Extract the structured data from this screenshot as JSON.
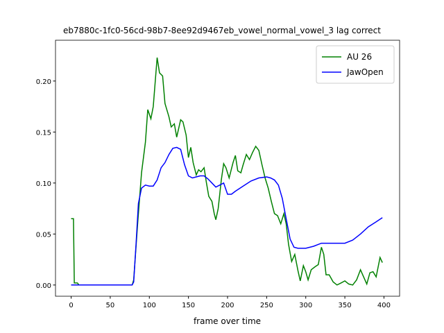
{
  "chart_data": {
    "type": "line",
    "title": "eb7880c-1fc0-56cd-98b7-8ee92d9467eb_vowel_normal_vowel_3  lag correct",
    "xlabel": "frame over time",
    "xlim": [
      -20,
      420
    ],
    "ylim": [
      -0.011,
      0.24
    ],
    "xticks": [
      0,
      50,
      100,
      150,
      200,
      250,
      300,
      350,
      400
    ],
    "yticks": [
      {
        "value": 0,
        "label": "0.00"
      },
      {
        "value": 0.05,
        "label": "0.05"
      },
      {
        "value": 0.1,
        "label": "0.10"
      },
      {
        "value": 0.15,
        "label": "0.15"
      },
      {
        "value": 0.2,
        "label": "0.20"
      }
    ],
    "legend": "upper right",
    "series": [
      {
        "name": "AU 26",
        "color": "#008000",
        "x": [
          0,
          3,
          4,
          8,
          10,
          78,
          80,
          85,
          90,
          95,
          98,
          102,
          105,
          110,
          113,
          117,
          120,
          125,
          128,
          132,
          135,
          140,
          143,
          147,
          150,
          153,
          156,
          160,
          163,
          166,
          170,
          173,
          176,
          180,
          183,
          185,
          188,
          192,
          195,
          198,
          202,
          207,
          210,
          213,
          217,
          220,
          224,
          228,
          232,
          236,
          240,
          244,
          248,
          252,
          256,
          260,
          264,
          268,
          272,
          275,
          278,
          282,
          286,
          290,
          293,
          297,
          300,
          303,
          307,
          312,
          316,
          320,
          323,
          326,
          330,
          335,
          340,
          345,
          350,
          355,
          360,
          365,
          370,
          374,
          378,
          382,
          386,
          390,
          395,
          398
        ],
        "values": [
          0.065,
          0.065,
          0.002,
          0.002,
          0,
          0,
          0.005,
          0.06,
          0.11,
          0.14,
          0.172,
          0.163,
          0.175,
          0.223,
          0.208,
          0.205,
          0.178,
          0.165,
          0.155,
          0.158,
          0.145,
          0.162,
          0.16,
          0.147,
          0.125,
          0.135,
          0.12,
          0.108,
          0.113,
          0.111,
          0.115,
          0.1,
          0.087,
          0.082,
          0.07,
          0.064,
          0.075,
          0.103,
          0.119,
          0.115,
          0.105,
          0.12,
          0.127,
          0.112,
          0.11,
          0.118,
          0.128,
          0.123,
          0.13,
          0.136,
          0.132,
          0.118,
          0.105,
          0.095,
          0.082,
          0.07,
          0.068,
          0.06,
          0.07,
          0.06,
          0.04,
          0.023,
          0.03,
          0.014,
          0.004,
          0.019,
          0.013,
          0.005,
          0.015,
          0.018,
          0.02,
          0.037,
          0.03,
          0.01,
          0.01,
          0.003,
          0,
          0.002,
          0.004,
          0.001,
          0,
          0.005,
          0.015,
          0.008,
          0.001,
          0.012,
          0.013,
          0.008,
          0.027,
          0.022
        ]
      },
      {
        "name": "JawOpen",
        "color": "#0000ff",
        "x": [
          0,
          78,
          80,
          83,
          86,
          90,
          95,
          100,
          105,
          110,
          115,
          120,
          125,
          130,
          135,
          140,
          145,
          150,
          155,
          160,
          165,
          170,
          175,
          180,
          185,
          190,
          195,
          200,
          205,
          210,
          220,
          230,
          240,
          250,
          255,
          260,
          265,
          270,
          275,
          280,
          285,
          290,
          300,
          310,
          320,
          330,
          340,
          350,
          360,
          370,
          380,
          390,
          398
        ],
        "values": [
          0,
          0,
          0.003,
          0.04,
          0.08,
          0.095,
          0.098,
          0.097,
          0.097,
          0.103,
          0.115,
          0.12,
          0.128,
          0.134,
          0.135,
          0.133,
          0.118,
          0.107,
          0.105,
          0.106,
          0.107,
          0.107,
          0.104,
          0.1,
          0.096,
          0.098,
          0.1,
          0.089,
          0.089,
          0.092,
          0.097,
          0.102,
          0.105,
          0.106,
          0.105,
          0.103,
          0.098,
          0.085,
          0.065,
          0.045,
          0.037,
          0.036,
          0.036,
          0.038,
          0.041,
          0.041,
          0.041,
          0.041,
          0.044,
          0.05,
          0.057,
          0.062,
          0.066
        ]
      }
    ]
  }
}
